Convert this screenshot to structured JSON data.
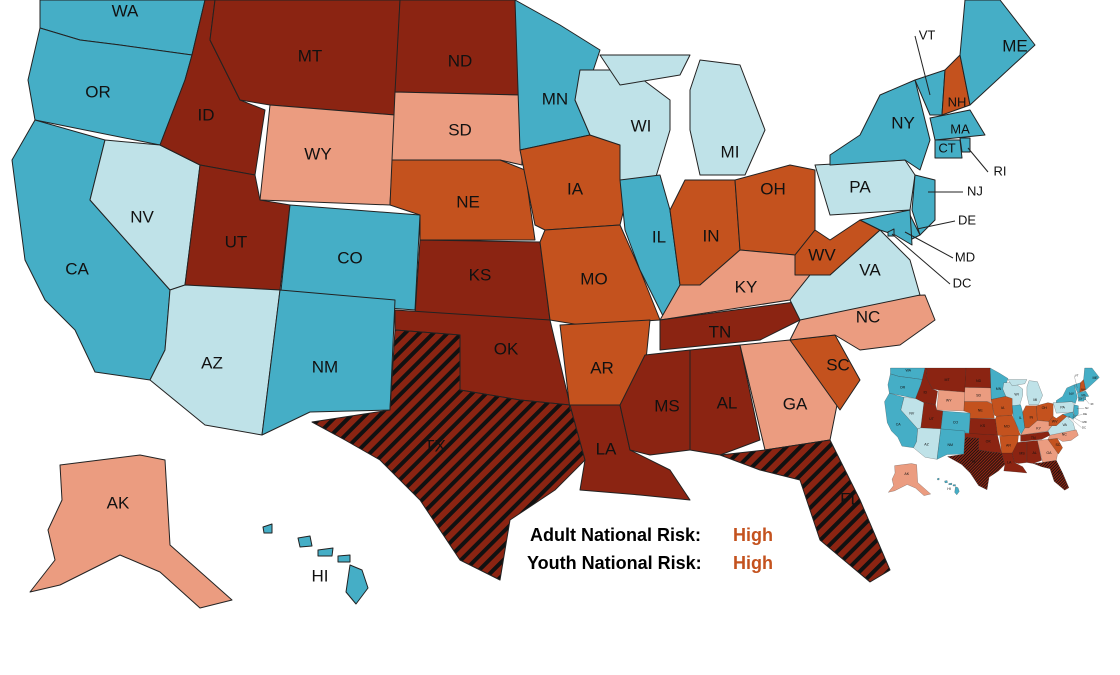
{
  "map": {
    "states": [
      {
        "label": "WA",
        "color": "#45aec6"
      },
      {
        "label": "OR",
        "color": "#45aec6"
      },
      {
        "label": "CA",
        "color": "#45aec6"
      },
      {
        "label": "NV",
        "color": "#bfe2e8"
      },
      {
        "label": "ID",
        "color": "#8b2412"
      },
      {
        "label": "MT",
        "color": "#8b2412"
      },
      {
        "label": "WY",
        "color": "#eb9c80"
      },
      {
        "label": "UT",
        "color": "#8b2412"
      },
      {
        "label": "CO",
        "color": "#45aec6"
      },
      {
        "label": "AZ",
        "color": "#bfe2e8"
      },
      {
        "label": "NM",
        "color": "#45aec6"
      },
      {
        "label": "ND",
        "color": "#8b2412"
      },
      {
        "label": "SD",
        "color": "#eb9c80"
      },
      {
        "label": "NE",
        "color": "#c4521e"
      },
      {
        "label": "KS",
        "color": "#8b2412"
      },
      {
        "label": "OK",
        "color": "#8b2412"
      },
      {
        "label": "TX",
        "color": "#8b2412",
        "hatched": true
      },
      {
        "label": "MN",
        "color": "#45aec6"
      },
      {
        "label": "IA",
        "color": "#c4521e"
      },
      {
        "label": "MO",
        "color": "#c4521e"
      },
      {
        "label": "AR",
        "color": "#c4521e"
      },
      {
        "label": "LA",
        "color": "#8b2412"
      },
      {
        "label": "WI",
        "color": "#bfe2e8"
      },
      {
        "label": "MI",
        "color": "#bfe2e8"
      },
      {
        "label": "IL",
        "color": "#45aec6"
      },
      {
        "label": "IN",
        "color": "#c4521e"
      },
      {
        "label": "OH",
        "color": "#c4521e"
      },
      {
        "label": "KY",
        "color": "#eb9c80"
      },
      {
        "label": "TN",
        "color": "#8b2412"
      },
      {
        "label": "MS",
        "color": "#8b2412"
      },
      {
        "label": "AL",
        "color": "#8b2412"
      },
      {
        "label": "GA",
        "color": "#eb9c80"
      },
      {
        "label": "FL",
        "color": "#8b2412",
        "hatched": true
      },
      {
        "label": "SC",
        "color": "#c4521e"
      },
      {
        "label": "NC",
        "color": "#eb9c80"
      },
      {
        "label": "VA",
        "color": "#bfe2e8"
      },
      {
        "label": "WV",
        "color": "#c4521e"
      },
      {
        "label": "PA",
        "color": "#bfe2e8"
      },
      {
        "label": "NY",
        "color": "#45aec6"
      },
      {
        "label": "VT",
        "color": "#45aec6"
      },
      {
        "label": "NH",
        "color": "#c4521e"
      },
      {
        "label": "ME",
        "color": "#45aec6"
      },
      {
        "label": "MA",
        "color": "#45aec6"
      },
      {
        "label": "CT",
        "color": "#45aec6"
      },
      {
        "label": "RI",
        "color": "#45aec6"
      },
      {
        "label": "NJ",
        "color": "#45aec6"
      },
      {
        "label": "DE",
        "color": "#45aec6"
      },
      {
        "label": "MD",
        "color": "#45aec6"
      },
      {
        "label": "DC",
        "color": "#45aec6"
      },
      {
        "label": "AK",
        "color": "#eb9c80"
      },
      {
        "label": "HI",
        "color": "#45aec6"
      }
    ]
  },
  "risk": {
    "adult": {
      "label": "Adult National Risk:",
      "level": "High",
      "level_color": "#c4521e"
    },
    "youth": {
      "label": "Youth National Risk:",
      "level": "High",
      "level_color": "#c4521e"
    }
  }
}
